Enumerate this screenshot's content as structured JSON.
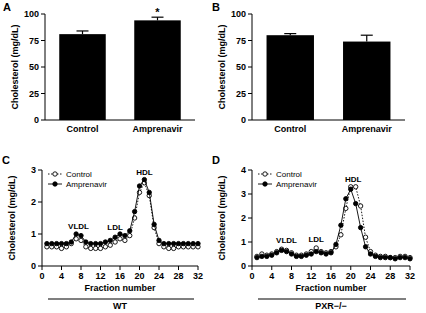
{
  "chart_data": [
    {
      "type": "bar",
      "panel": "A",
      "categories": [
        "Control",
        "Amprenavir"
      ],
      "values": [
        81,
        94
      ],
      "errors": [
        3,
        3
      ],
      "color": "#000000",
      "ylim": [
        0,
        100
      ],
      "yticks": [
        0,
        25,
        50,
        75,
        100
      ],
      "ylabel": "Cholesterol (mg/dL)",
      "annotations": [
        {
          "text": "*",
          "x": "Amprenavir"
        }
      ]
    },
    {
      "type": "bar",
      "panel": "B",
      "categories": [
        "Control",
        "Amprenavir"
      ],
      "values": [
        80,
        74
      ],
      "errors": [
        1.5,
        6
      ],
      "color": "#000000",
      "ylim": [
        0,
        100
      ],
      "yticks": [
        0,
        25,
        50,
        75,
        100
      ],
      "ylabel": "Cholesterol (mg/dL)"
    },
    {
      "type": "line",
      "panel": "C",
      "caption": "WT",
      "x": [
        1,
        2,
        3,
        4,
        5,
        6,
        7,
        8,
        9,
        10,
        11,
        12,
        13,
        14,
        15,
        16,
        17,
        18,
        19,
        20,
        21,
        22,
        23,
        24,
        25,
        26,
        27,
        28,
        29,
        30,
        31,
        32
      ],
      "series": [
        {
          "name": "Control",
          "color": "#000000",
          "marker": "open-circle",
          "line_style": "dotted",
          "values": [
            0.6,
            0.6,
            0.6,
            0.55,
            0.6,
            0.7,
            0.85,
            0.8,
            0.6,
            0.55,
            0.55,
            0.55,
            0.6,
            0.65,
            0.75,
            0.85,
            0.8,
            0.95,
            1.5,
            2.3,
            2.6,
            2.2,
            1.2,
            0.7,
            0.6,
            0.55,
            0.55,
            0.6,
            0.6,
            0.6,
            0.6,
            0.6
          ]
        },
        {
          "name": "Amprenavir",
          "color": "#000000",
          "marker": "filled-circle",
          "line_style": "solid",
          "values": [
            0.7,
            0.7,
            0.7,
            0.7,
            0.7,
            0.75,
            1.0,
            0.95,
            0.75,
            0.7,
            0.7,
            0.7,
            0.75,
            0.8,
            0.9,
            1.0,
            0.95,
            1.1,
            1.7,
            2.5,
            2.7,
            2.3,
            1.3,
            0.8,
            0.7,
            0.7,
            0.7,
            0.7,
            0.7,
            0.7,
            0.7,
            0.7
          ]
        }
      ],
      "xlim": [
        0,
        32
      ],
      "xticks": [
        0,
        4,
        8,
        12,
        16,
        20,
        24,
        28,
        32
      ],
      "ylim": [
        0,
        3
      ],
      "yticks": [
        0,
        1,
        2,
        3
      ],
      "xlabel": "Fraction number",
      "ylabel": "Cholesterol (mg/dL)",
      "legend": "upper left",
      "annotations": [
        {
          "text": "VLDL",
          "x": 7.5,
          "y": 1.15
        },
        {
          "text": "LDL",
          "x": 15,
          "y": 1.12
        },
        {
          "text": "HDL",
          "x": 21,
          "y": 2.85
        }
      ]
    },
    {
      "type": "line",
      "panel": "D",
      "caption": "PXR−/−",
      "x": [
        1,
        2,
        3,
        4,
        5,
        6,
        7,
        8,
        9,
        10,
        11,
        12,
        13,
        14,
        15,
        16,
        17,
        18,
        19,
        20,
        21,
        22,
        23,
        24,
        25,
        26,
        27,
        28,
        29,
        30,
        31,
        32
      ],
      "series": [
        {
          "name": "Control",
          "color": "#000000",
          "marker": "open-circle",
          "line_style": "dotted",
          "values": [
            0.4,
            0.5,
            0.45,
            0.5,
            0.6,
            0.7,
            0.65,
            0.55,
            0.45,
            0.45,
            0.5,
            0.6,
            0.75,
            0.6,
            0.55,
            0.6,
            0.8,
            1.3,
            2.4,
            3.3,
            3.3,
            2.5,
            1.2,
            0.6,
            0.45,
            0.4,
            0.4,
            0.35,
            0.35,
            0.4,
            0.4,
            0.35
          ]
        },
        {
          "name": "Amprenavir",
          "color": "#000000",
          "marker": "filled-circle",
          "line_style": "solid",
          "values": [
            0.35,
            0.4,
            0.4,
            0.45,
            0.55,
            0.65,
            0.6,
            0.5,
            0.4,
            0.4,
            0.45,
            0.5,
            0.6,
            0.55,
            0.5,
            0.55,
            0.9,
            1.7,
            2.8,
            3.2,
            2.6,
            1.6,
            0.8,
            0.5,
            0.4,
            0.35,
            0.35,
            0.35,
            0.3,
            0.35,
            0.35,
            0.3
          ]
        }
      ],
      "xlim": [
        0,
        32
      ],
      "xticks": [
        0,
        4,
        8,
        12,
        16,
        20,
        24,
        28,
        32
      ],
      "ylim": [
        0,
        4
      ],
      "yticks": [
        0,
        1,
        2,
        3,
        4
      ],
      "xlabel": "Fraction number",
      "ylabel": "Cholesterol (mg/dL)",
      "legend": "upper left",
      "annotations": [
        {
          "text": "VLDL",
          "x": 7,
          "y": 0.95
        },
        {
          "text": "LDL",
          "x": 13,
          "y": 1.0
        },
        {
          "text": "HDL",
          "x": 20.5,
          "y": 3.5
        }
      ]
    }
  ]
}
